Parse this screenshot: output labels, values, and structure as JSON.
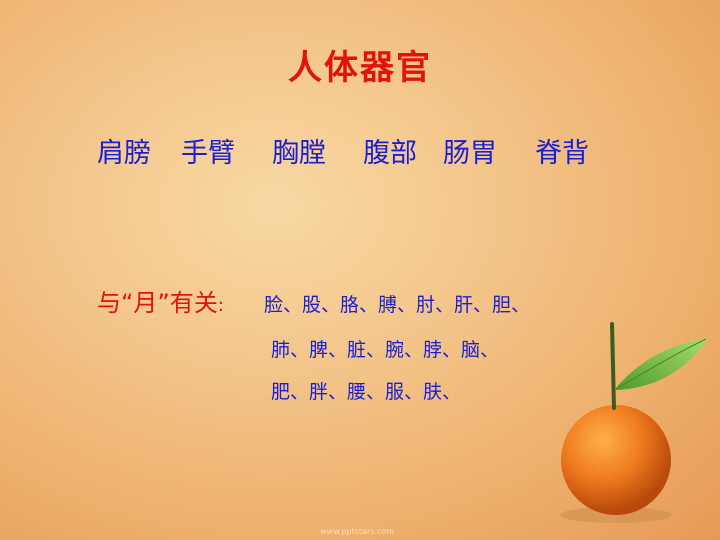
{
  "title": "人体器官",
  "terms": [
    "肩膀",
    "手臂",
    "胸膛",
    "腹部",
    "肠胃",
    "脊背"
  ],
  "prefix": {
    "label": "与“月”有关",
    "colon": ":"
  },
  "rows": [
    "脸、股、胳、膊、肘、肝、胆、",
    "肺、脾、脏、腕、脖、脑、",
    "肥、胖、腰、服、肤、"
  ],
  "watermark": "www.pptstars.com",
  "colors": {
    "title": "#e3120b",
    "body": "#1a1fd4",
    "orange": "#ef7a1e",
    "leaf": "#6ab83e"
  }
}
